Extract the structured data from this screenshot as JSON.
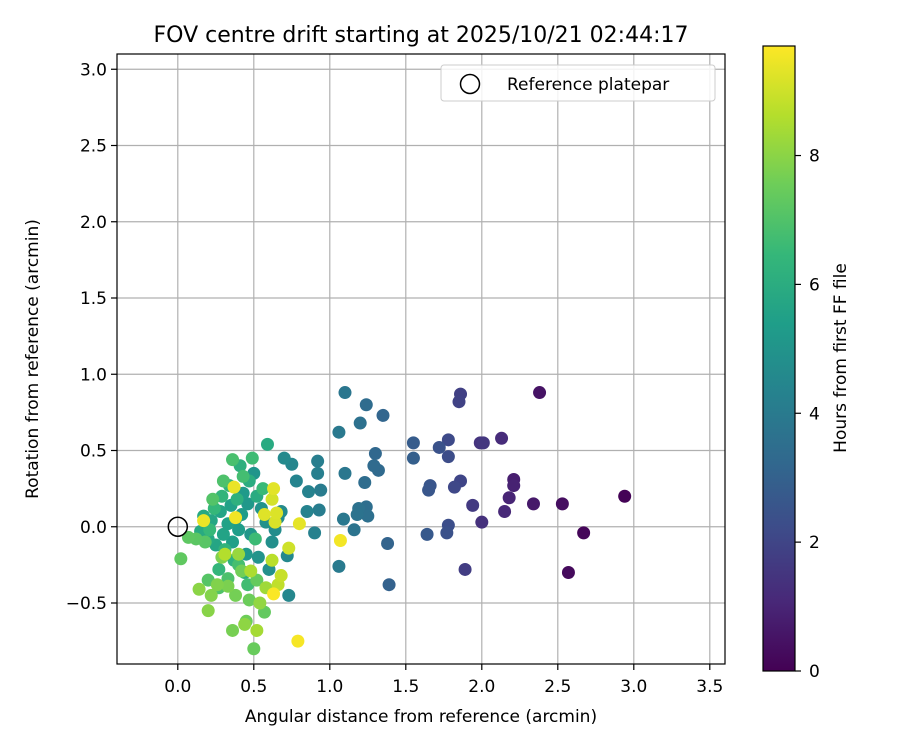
{
  "chart_data": {
    "type": "scatter",
    "title": "FOV centre drift starting at 2025/10/21 02:44:17",
    "xlabel": "Angular distance from reference (arcmin)",
    "ylabel": "Rotation from reference (arcmin)",
    "xlim": [
      -0.4,
      3.6
    ],
    "ylim": [
      -0.9,
      3.1
    ],
    "xticks": [
      0.0,
      0.5,
      1.0,
      1.5,
      2.0,
      2.5,
      3.0,
      3.5
    ],
    "xtick_labels": [
      "0.0",
      "0.5",
      "1.0",
      "1.5",
      "2.0",
      "2.5",
      "3.0",
      "3.5"
    ],
    "yticks": [
      -0.5,
      0.0,
      0.5,
      1.0,
      1.5,
      2.0,
      2.5,
      3.0
    ],
    "ytick_labels": [
      "−0.5",
      "0.0",
      "0.5",
      "1.0",
      "1.5",
      "2.0",
      "2.5",
      "3.0"
    ],
    "grid": true,
    "legend": {
      "position": "top-right",
      "entries": [
        "Reference platepar"
      ]
    },
    "reference_point": {
      "x": 0.0,
      "y": 0.0,
      "label": "Reference platepar"
    },
    "colorbar": {
      "label": "Hours from first FF file",
      "range": [
        0,
        9.7
      ],
      "ticks": [
        0,
        2,
        4,
        6,
        8
      ],
      "tick_labels": [
        "0",
        "2",
        "4",
        "6",
        "8"
      ],
      "colormap": "viridis"
    },
    "points": [
      {
        "x": 2.94,
        "y": 0.2,
        "h": 0.05
      },
      {
        "x": 2.67,
        "y": -0.04,
        "h": 0.15
      },
      {
        "x": 2.57,
        "y": -0.3,
        "h": 0.25
      },
      {
        "x": 2.53,
        "y": 0.15,
        "h": 0.35
      },
      {
        "x": 2.38,
        "y": 0.88,
        "h": 0.5
      },
      {
        "x": 2.34,
        "y": 0.15,
        "h": 0.65
      },
      {
        "x": 2.21,
        "y": 0.31,
        "h": 0.8
      },
      {
        "x": 2.21,
        "y": 0.27,
        "h": 0.9
      },
      {
        "x": 2.18,
        "y": 0.19,
        "h": 1.0
      },
      {
        "x": 2.15,
        "y": 0.1,
        "h": 1.1
      },
      {
        "x": 2.13,
        "y": 0.58,
        "h": 1.2
      },
      {
        "x": 2.0,
        "y": 0.03,
        "h": 1.35
      },
      {
        "x": 1.99,
        "y": 0.55,
        "h": 1.45
      },
      {
        "x": 2.01,
        "y": 0.55,
        "h": 1.55
      },
      {
        "x": 1.94,
        "y": 0.14,
        "h": 1.65
      },
      {
        "x": 1.89,
        "y": -0.28,
        "h": 1.75
      },
      {
        "x": 1.86,
        "y": 0.87,
        "h": 1.85
      },
      {
        "x": 1.85,
        "y": 0.82,
        "h": 1.9
      },
      {
        "x": 1.86,
        "y": 0.3,
        "h": 2.0
      },
      {
        "x": 1.82,
        "y": 0.26,
        "h": 2.1
      },
      {
        "x": 1.78,
        "y": 0.57,
        "h": 2.15
      },
      {
        "x": 1.78,
        "y": 0.46,
        "h": 2.25
      },
      {
        "x": 1.78,
        "y": 0.01,
        "h": 2.3
      },
      {
        "x": 1.77,
        "y": -0.04,
        "h": 2.4
      },
      {
        "x": 1.72,
        "y": 0.52,
        "h": 2.45
      },
      {
        "x": 1.66,
        "y": 0.27,
        "h": 2.55
      },
      {
        "x": 1.65,
        "y": 0.24,
        "h": 2.6
      },
      {
        "x": 1.64,
        "y": -0.05,
        "h": 2.7
      },
      {
        "x": 1.55,
        "y": 0.55,
        "h": 2.8
      },
      {
        "x": 1.55,
        "y": 0.45,
        "h": 2.9
      },
      {
        "x": 1.39,
        "y": -0.38,
        "h": 3.0
      },
      {
        "x": 1.38,
        "y": -0.11,
        "h": 3.1
      },
      {
        "x": 1.35,
        "y": 0.73,
        "h": 3.15
      },
      {
        "x": 1.3,
        "y": 0.48,
        "h": 3.25
      },
      {
        "x": 1.32,
        "y": 0.37,
        "h": 3.3
      },
      {
        "x": 1.29,
        "y": 0.4,
        "h": 3.35
      },
      {
        "x": 1.24,
        "y": 0.8,
        "h": 3.4
      },
      {
        "x": 1.23,
        "y": 0.29,
        "h": 3.45
      },
      {
        "x": 1.24,
        "y": 0.13,
        "h": 3.5
      },
      {
        "x": 1.25,
        "y": 0.07,
        "h": 3.55
      },
      {
        "x": 1.2,
        "y": 0.68,
        "h": 3.6
      },
      {
        "x": 1.19,
        "y": 0.12,
        "h": 3.65
      },
      {
        "x": 1.18,
        "y": 0.08,
        "h": 3.7
      },
      {
        "x": 1.16,
        "y": -0.02,
        "h": 3.75
      },
      {
        "x": 1.1,
        "y": 0.88,
        "h": 3.8
      },
      {
        "x": 1.1,
        "y": 0.35,
        "h": 3.85
      },
      {
        "x": 1.09,
        "y": 0.05,
        "h": 3.9
      },
      {
        "x": 1.06,
        "y": 0.62,
        "h": 3.95
      },
      {
        "x": 1.06,
        "y": -0.26,
        "h": 4.0
      },
      {
        "x": 0.94,
        "y": 0.24,
        "h": 4.05
      },
      {
        "x": 0.93,
        "y": 0.11,
        "h": 4.1
      },
      {
        "x": 0.92,
        "y": 0.43,
        "h": 4.15
      },
      {
        "x": 0.92,
        "y": 0.35,
        "h": 4.2
      },
      {
        "x": 0.9,
        "y": -0.04,
        "h": 4.25
      },
      {
        "x": 0.86,
        "y": 0.23,
        "h": 4.3
      },
      {
        "x": 0.85,
        "y": 0.1,
        "h": 4.35
      },
      {
        "x": 0.78,
        "y": 0.3,
        "h": 4.4
      },
      {
        "x": 0.75,
        "y": 0.41,
        "h": 4.45
      },
      {
        "x": 0.73,
        "y": -0.45,
        "h": 4.5
      },
      {
        "x": 0.72,
        "y": -0.19,
        "h": 4.55
      },
      {
        "x": 0.7,
        "y": 0.45,
        "h": 4.6
      },
      {
        "x": 0.68,
        "y": 0.1,
        "h": 4.65
      },
      {
        "x": 0.66,
        "y": 0.06,
        "h": 4.7
      },
      {
        "x": 0.64,
        "y": -0.02,
        "h": 4.75
      },
      {
        "x": 0.62,
        "y": -0.1,
        "h": 4.8
      },
      {
        "x": 0.6,
        "y": -0.28,
        "h": 4.85
      },
      {
        "x": 0.58,
        "y": 0.03,
        "h": 4.9
      },
      {
        "x": 0.55,
        "y": 0.12,
        "h": 4.95
      },
      {
        "x": 0.53,
        "y": -0.2,
        "h": 5.0
      },
      {
        "x": 0.5,
        "y": 0.35,
        "h": 5.05
      },
      {
        "x": 0.48,
        "y": -0.05,
        "h": 5.1
      },
      {
        "x": 0.46,
        "y": 0.15,
        "h": 5.15
      },
      {
        "x": 0.45,
        "y": -0.18,
        "h": 5.2
      },
      {
        "x": 0.43,
        "y": 0.22,
        "h": 5.25
      },
      {
        "x": 0.42,
        "y": 0.08,
        "h": 5.3
      },
      {
        "x": 0.4,
        "y": -0.02,
        "h": 5.35
      },
      {
        "x": 0.38,
        "y": 0.05,
        "h": 5.4
      },
      {
        "x": 0.36,
        "y": -0.1,
        "h": 5.45
      },
      {
        "x": 0.35,
        "y": 0.14,
        "h": 5.5
      },
      {
        "x": 0.33,
        "y": 0.02,
        "h": 5.55
      },
      {
        "x": 0.3,
        "y": -0.05,
        "h": 5.6
      },
      {
        "x": 0.28,
        "y": 0.1,
        "h": 5.65
      },
      {
        "x": 0.25,
        "y": -0.12,
        "h": 5.7
      },
      {
        "x": 0.22,
        "y": 0.04,
        "h": 5.75
      },
      {
        "x": 0.2,
        "y": -0.08,
        "h": 5.8
      },
      {
        "x": 0.17,
        "y": 0.07,
        "h": 5.85
      },
      {
        "x": 0.15,
        "y": -0.03,
        "h": 5.9
      },
      {
        "x": 0.59,
        "y": 0.54,
        "h": 5.9
      },
      {
        "x": 0.52,
        "y": 0.2,
        "h": 5.95
      },
      {
        "x": 0.47,
        "y": 0.3,
        "h": 6.0
      },
      {
        "x": 0.44,
        "y": -0.3,
        "h": 6.05
      },
      {
        "x": 0.41,
        "y": 0.4,
        "h": 6.1
      },
      {
        "x": 0.39,
        "y": 0.18,
        "h": 6.15
      },
      {
        "x": 0.37,
        "y": -0.22,
        "h": 6.2
      },
      {
        "x": 0.34,
        "y": 0.27,
        "h": 6.25
      },
      {
        "x": 0.31,
        "y": -0.15,
        "h": 6.3
      },
      {
        "x": 0.29,
        "y": 0.2,
        "h": 6.35
      },
      {
        "x": 0.27,
        "y": -0.28,
        "h": 6.4
      },
      {
        "x": 0.24,
        "y": 0.12,
        "h": 6.45
      },
      {
        "x": 0.21,
        "y": -0.02,
        "h": 6.5
      },
      {
        "x": 0.56,
        "y": 0.25,
        "h": 6.55
      },
      {
        "x": 0.51,
        "y": -0.08,
        "h": 6.6
      },
      {
        "x": 0.49,
        "y": 0.45,
        "h": 6.65
      },
      {
        "x": 0.46,
        "y": -0.38,
        "h": 6.7
      },
      {
        "x": 0.43,
        "y": 0.33,
        "h": 6.75
      },
      {
        "x": 0.4,
        "y": -0.25,
        "h": 6.8
      },
      {
        "x": 0.36,
        "y": 0.44,
        "h": 6.85
      },
      {
        "x": 0.33,
        "y": -0.34,
        "h": 6.9
      },
      {
        "x": 0.3,
        "y": 0.3,
        "h": 6.95
      },
      {
        "x": 0.27,
        "y": -0.4,
        "h": 7.0
      },
      {
        "x": 0.23,
        "y": 0.18,
        "h": 7.05
      },
      {
        "x": 0.2,
        "y": -0.35,
        "h": 7.1
      },
      {
        "x": 0.18,
        "y": -0.1,
        "h": 7.15
      },
      {
        "x": 0.12,
        "y": -0.08,
        "h": 7.2
      },
      {
        "x": 0.07,
        "y": -0.07,
        "h": 7.25
      },
      {
        "x": 0.02,
        "y": -0.21,
        "h": 7.3
      },
      {
        "x": 0.57,
        "y": -0.56,
        "h": 7.35
      },
      {
        "x": 0.52,
        "y": -0.35,
        "h": 7.4
      },
      {
        "x": 0.5,
        "y": -0.8,
        "h": 7.45
      },
      {
        "x": 0.47,
        "y": -0.48,
        "h": 7.5
      },
      {
        "x": 0.45,
        "y": -0.62,
        "h": 7.55
      },
      {
        "x": 0.42,
        "y": -0.29,
        "h": 7.6
      },
      {
        "x": 0.38,
        "y": -0.45,
        "h": 7.65
      },
      {
        "x": 0.36,
        "y": -0.68,
        "h": 7.7
      },
      {
        "x": 0.33,
        "y": -0.39,
        "h": 7.75
      },
      {
        "x": 0.29,
        "y": -0.2,
        "h": 7.8
      },
      {
        "x": 0.26,
        "y": -0.38,
        "h": 7.85
      },
      {
        "x": 0.22,
        "y": -0.45,
        "h": 7.9
      },
      {
        "x": 0.2,
        "y": -0.55,
        "h": 7.95
      },
      {
        "x": 0.14,
        "y": -0.41,
        "h": 8.0
      },
      {
        "x": 0.44,
        "y": -0.64,
        "h": 8.05
      },
      {
        "x": 0.54,
        "y": -0.5,
        "h": 8.1
      },
      {
        "x": 0.4,
        "y": -0.18,
        "h": 8.2
      },
      {
        "x": 0.58,
        "y": -0.4,
        "h": 8.3
      },
      {
        "x": 0.52,
        "y": -0.68,
        "h": 8.4
      },
      {
        "x": 0.48,
        "y": -0.29,
        "h": 8.5
      },
      {
        "x": 0.31,
        "y": -0.18,
        "h": 8.6
      },
      {
        "x": 0.62,
        "y": -0.22,
        "h": 8.7
      },
      {
        "x": 0.66,
        "y": -0.38,
        "h": 8.8
      },
      {
        "x": 0.68,
        "y": -0.32,
        "h": 8.9
      },
      {
        "x": 0.73,
        "y": -0.14,
        "h": 9.0
      },
      {
        "x": 0.62,
        "y": 0.18,
        "h": 9.1
      },
      {
        "x": 0.64,
        "y": 0.03,
        "h": 9.15
      },
      {
        "x": 0.65,
        "y": 0.09,
        "h": 9.2
      },
      {
        "x": 0.57,
        "y": 0.08,
        "h": 9.25
      },
      {
        "x": 0.63,
        "y": 0.25,
        "h": 9.3
      },
      {
        "x": 0.8,
        "y": 0.02,
        "h": 9.35
      },
      {
        "x": 0.37,
        "y": 0.26,
        "h": 9.4
      },
      {
        "x": 0.17,
        "y": 0.04,
        "h": 9.45
      },
      {
        "x": 0.38,
        "y": 0.06,
        "h": 9.5
      },
      {
        "x": 1.07,
        "y": -0.09,
        "h": 9.55
      },
      {
        "x": 0.79,
        "y": -0.75,
        "h": 9.6
      },
      {
        "x": 0.63,
        "y": -0.44,
        "h": 9.65
      }
    ]
  }
}
